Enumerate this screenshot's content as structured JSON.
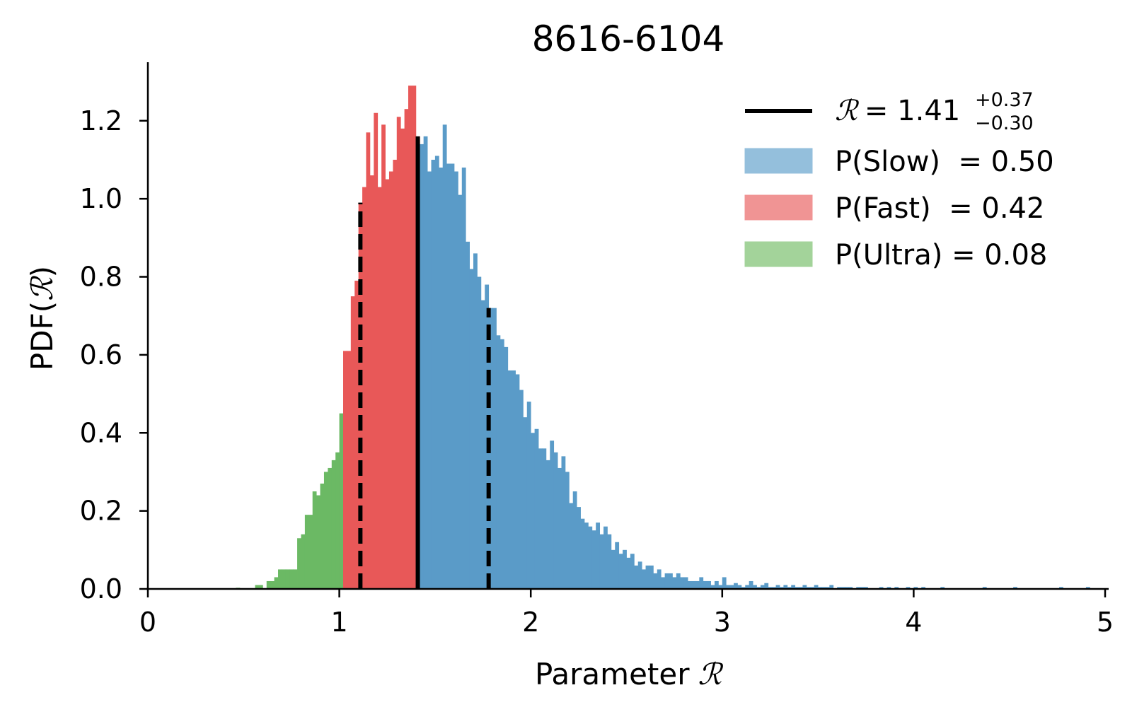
{
  "chart_data": {
    "type": "bar",
    "title": "8616-6104",
    "xlabel": "Parameter",
    "ylabel": "PDF",
    "symbol": "ℛ",
    "xlim": [
      0,
      5
    ],
    "ylim": [
      0,
      1.35
    ],
    "xticks": [
      "0",
      "1",
      "2",
      "3",
      "4",
      "5"
    ],
    "yticks": [
      "0.0",
      "0.2",
      "0.4",
      "0.6",
      "0.8",
      "1.0",
      "1.2"
    ],
    "bin_width": 0.02,
    "grid": false,
    "legend_position": "top-right",
    "colors": {
      "Slow": "#5a9bc8",
      "Fast": "#e85858",
      "Ultra": "#6bb964"
    },
    "legend": {
      "estimate": {
        "prefix": "= 1.41",
        "upper": "+0.37",
        "lower": "−0.30"
      },
      "items": [
        {
          "label": "P(Slow)  = 0.50",
          "color": "#94bfdc"
        },
        {
          "label": "P(Fast)  = 0.42",
          "color": "#f09494"
        },
        {
          "label": "P(Ultra) = 0.08",
          "color": "#a3d39a"
        }
      ]
    },
    "median_line": 1.41,
    "ci_lines": [
      1.11,
      1.78
    ],
    "series": [
      {
        "name": "Ultra",
        "x_start": 0.46,
        "values": [
          0.003,
          0,
          0,
          0,
          0,
          0.01,
          0.01,
          0,
          0.02,
          0.02,
          0.03,
          0.05,
          0.05,
          0.05,
          0.05,
          0.05,
          0.13,
          0.14,
          0.19,
          0.19,
          0.25,
          0.24,
          0.27,
          0.3,
          0.31,
          0.33,
          0.35,
          0.45,
          0.47,
          0.5,
          0.54
        ]
      },
      {
        "name": "Fast",
        "x_start": 1.02,
        "values": [
          0.61,
          0.61,
          0.75,
          0.79,
          0.99,
          1.03,
          1.17,
          1.06,
          1.22,
          1.03,
          1.19,
          1.05,
          1.07,
          1.1,
          1.21,
          1.18,
          1.23,
          1.29,
          1.29,
          1.16
        ]
      },
      {
        "name": "Slow",
        "x_start": 1.42,
        "values": [
          1.14,
          1.16,
          1.07,
          1.1,
          1.11,
          1.08,
          1.19,
          1.09,
          1.09,
          1.07,
          1.01,
          1.08,
          0.89,
          0.82,
          0.86,
          0.8,
          0.74,
          0.78,
          0.72,
          0.72,
          0.65,
          0.64,
          0.62,
          0.56,
          0.56,
          0.55,
          0.51,
          0.44,
          0.48,
          0.4,
          0.41,
          0.36,
          0.36,
          0.33,
          0.38,
          0.35,
          0.31,
          0.34,
          0.3,
          0.22,
          0.25,
          0.21,
          0.18,
          0.17,
          0.16,
          0.15,
          0.17,
          0.14,
          0.16,
          0.14,
          0.1,
          0.12,
          0.09,
          0.1,
          0.08,
          0.09,
          0.06,
          0.07,
          0.05,
          0.06,
          0.06,
          0.04,
          0.05,
          0.03,
          0.04,
          0.04,
          0.03,
          0.04,
          0.03,
          0.03,
          0.02,
          0.02,
          0.02,
          0.03,
          0.02,
          0.02,
          0.01,
          0.02,
          0.01,
          0.03,
          0.01,
          0.01,
          0.015,
          0.01,
          0.005,
          0.01,
          0.02,
          0.01,
          0.005,
          0.01,
          0.015,
          0.005,
          0.005,
          0.01,
          0.005,
          0.01,
          0.005,
          0.01,
          0.005,
          0.005,
          0.01,
          0.005,
          0.005,
          0.01,
          0.005,
          0.005,
          0.005,
          0.01,
          0,
          0.005,
          0.005,
          0.005,
          0.005,
          0,
          0.005,
          0.005,
          0.005,
          0,
          0,
          0,
          0.005,
          0,
          0.005,
          0,
          0.005,
          0,
          0,
          0.005,
          0,
          0.005,
          0,
          0.005,
          0,
          0,
          0,
          0,
          0.005,
          0,
          0,
          0,
          0,
          0,
          0,
          0,
          0,
          0,
          0,
          0.005,
          0,
          0,
          0,
          0,
          0,
          0,
          0,
          0.005,
          0,
          0,
          0,
          0,
          0,
          0,
          0,
          0,
          0,
          0,
          0,
          0.005,
          0,
          0,
          0,
          0,
          0,
          0,
          0.005
        ]
      }
    ]
  }
}
